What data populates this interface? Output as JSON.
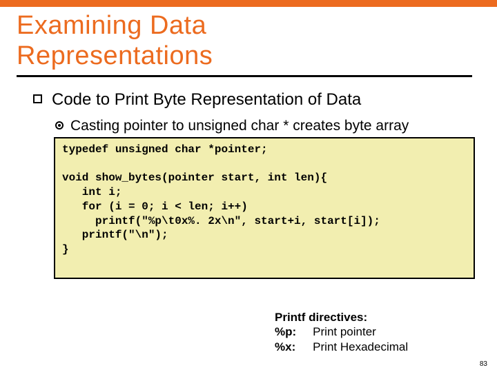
{
  "colors": {
    "accent": "#ec6b1f",
    "code_bg": "#f2eeb0",
    "text": "#000000",
    "bg": "#ffffff"
  },
  "title": {
    "line1": "Examining Data",
    "line2": " Representations"
  },
  "bullet_main": "Code to Print Byte Representation of Data",
  "bullet_sub": "Casting pointer to unsigned char * creates byte array",
  "code": {
    "l1": "typedef unsigned char *pointer;",
    "l2": "",
    "l3": "void show_bytes(pointer start, int len){",
    "l4": "   int i;",
    "l5": "   for (i = 0; i < len; i++)",
    "l6": "     printf(\"%p\\t0x%. 2x\\n\", start+i, start[i]);",
    "l7": "   printf(\"\\n\");",
    "l8": "}"
  },
  "directives": {
    "heading": "Printf directives:",
    "r1k": "%p:",
    "r1v": "Print pointer",
    "r2k": "%x:",
    "r2v": "Print Hexadecimal"
  },
  "page_number": "83"
}
